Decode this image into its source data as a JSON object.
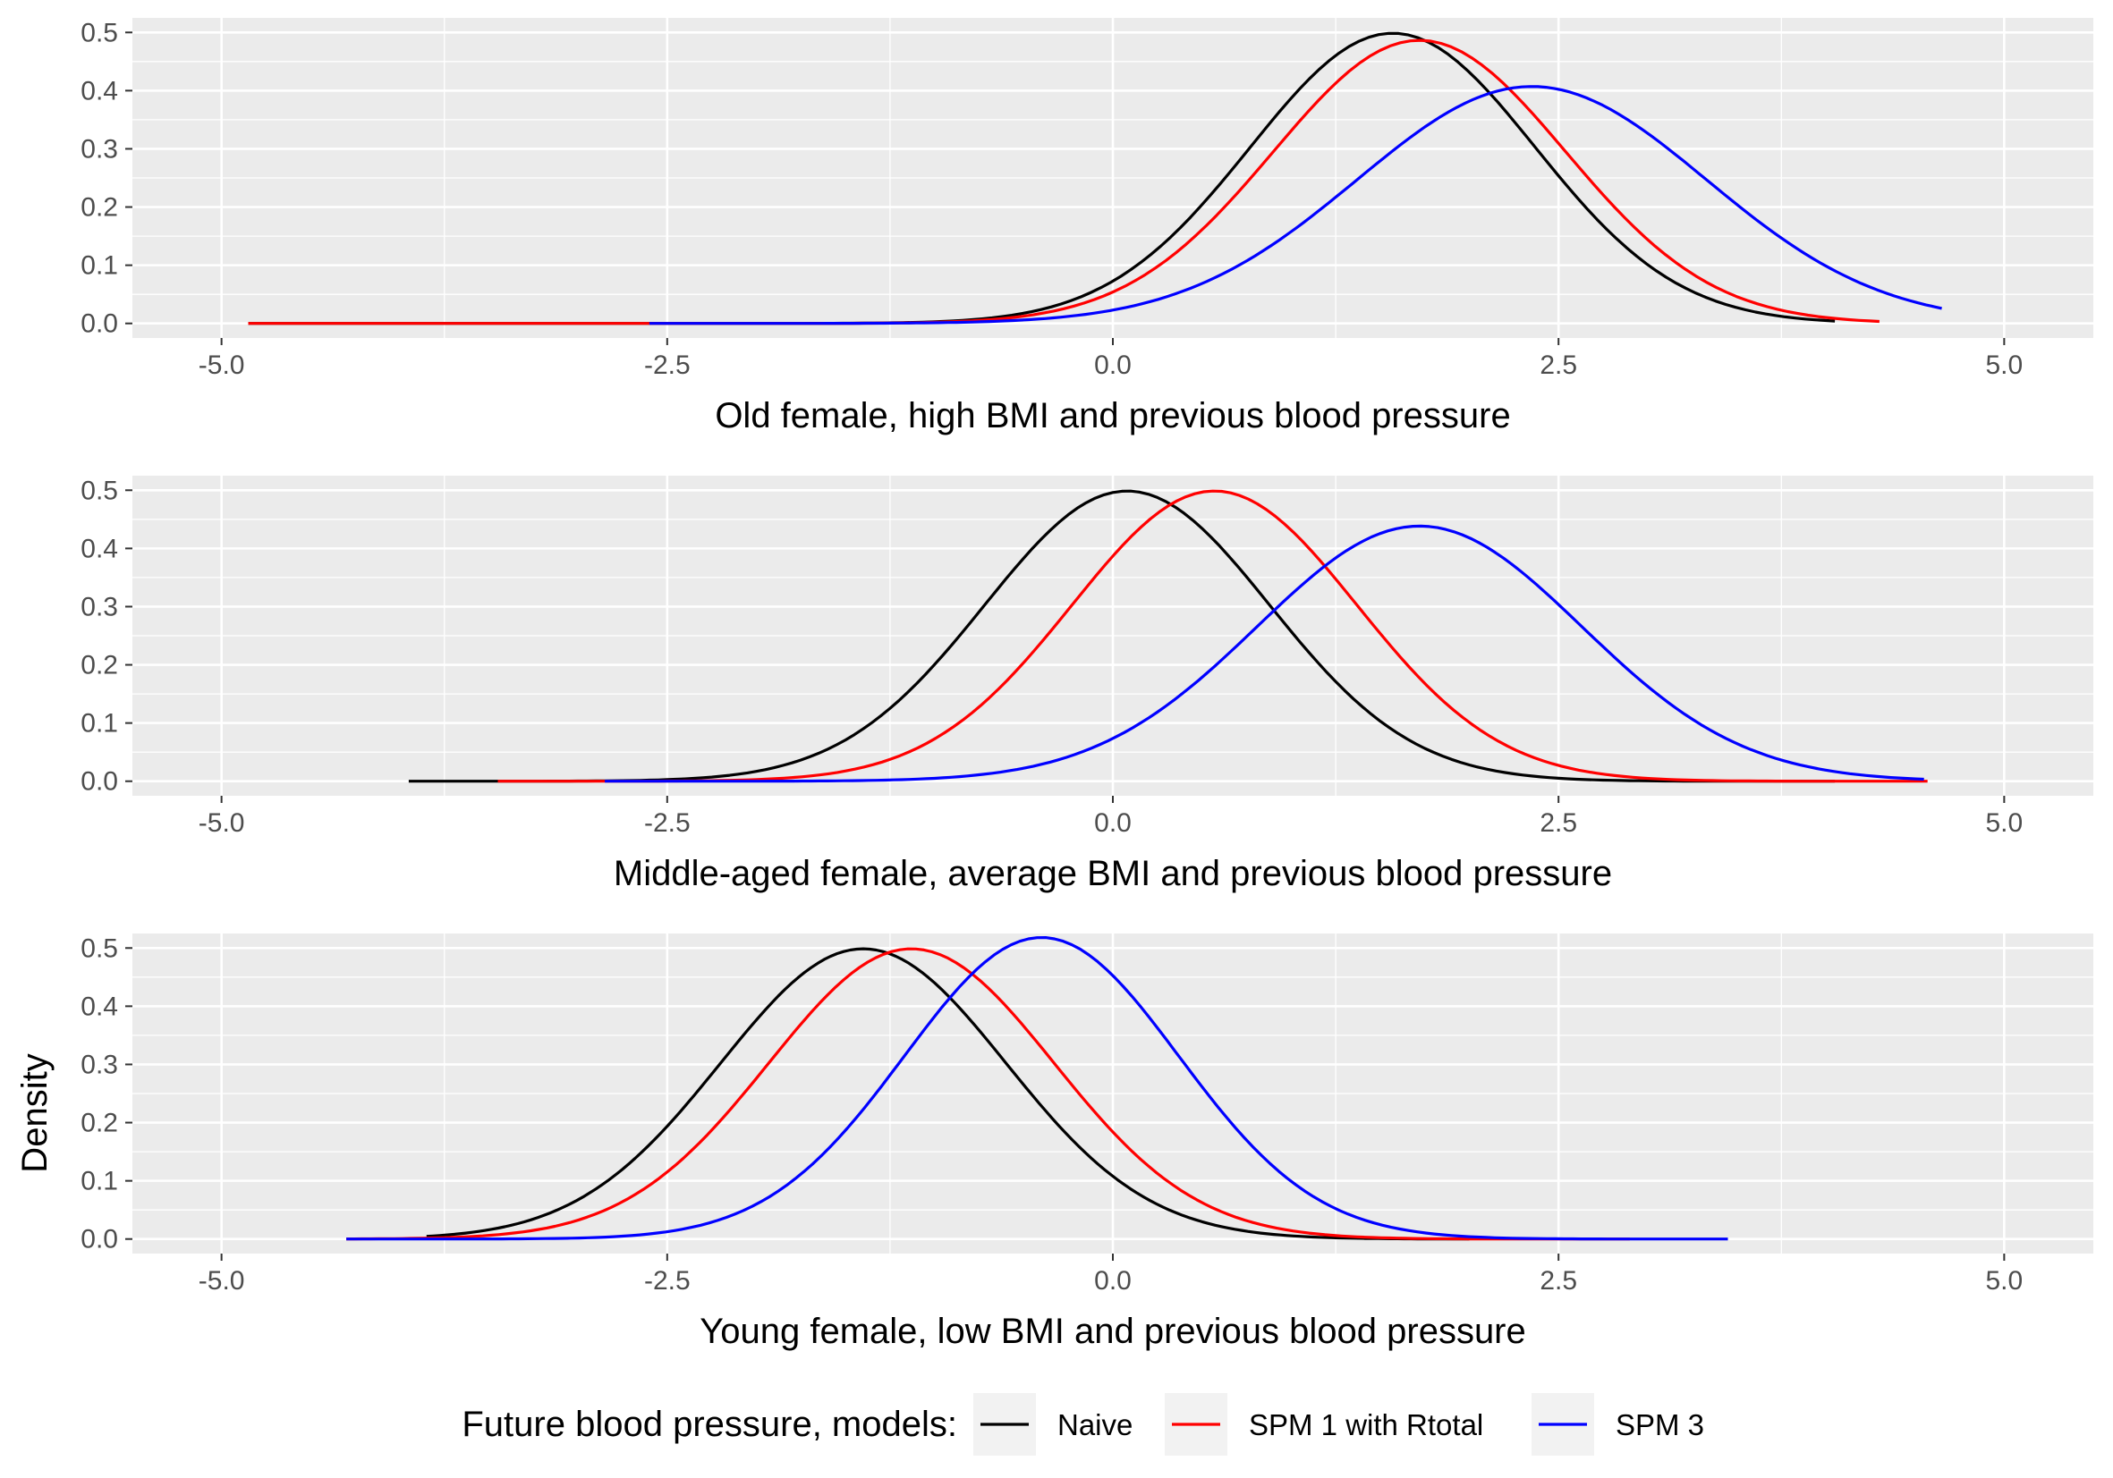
{
  "chart_data": {
    "type": "line",
    "ylabel": "Density",
    "xlim": [
      -5.0,
      5.0
    ],
    "ylim": [
      0.0,
      0.5
    ],
    "x_ticks": [
      "-5.0",
      "-2.5",
      "0.0",
      "2.5",
      "5.0"
    ],
    "y_ticks": [
      "0.0",
      "0.1",
      "0.2",
      "0.3",
      "0.4",
      "0.5"
    ],
    "grid": true,
    "legend": {
      "title": "Future blood pressure, models:",
      "position": "bottom",
      "entries": [
        {
          "name": "Naive",
          "color": "#000000"
        },
        {
          "name": "SPM 1 with Rtotal",
          "color": "#ff0000"
        },
        {
          "name": "SPM 3",
          "color": "#0000ff"
        }
      ]
    },
    "panels": [
      {
        "xlabel": "Old female, high BMI and previous blood pressure",
        "series": [
          {
            "name": "Naive",
            "mean": 1.57,
            "sd": 0.8,
            "xmin": -4.85,
            "xmax": 4.05
          },
          {
            "name": "SPM 1 with Rtotal",
            "mean": 1.72,
            "sd": 0.82,
            "xmin": -4.85,
            "xmax": 4.3
          },
          {
            "name": "SPM 3",
            "mean": 2.35,
            "sd": 0.98,
            "xmin": -2.6,
            "xmax": 4.65
          }
        ]
      },
      {
        "xlabel": "Middle-aged female, average BMI and previous blood pressure",
        "series": [
          {
            "name": "Naive",
            "mean": 0.08,
            "sd": 0.8,
            "xmin": -3.95,
            "xmax": 4.05
          },
          {
            "name": "SPM 1 with Rtotal",
            "mean": 0.57,
            "sd": 0.8,
            "xmin": -3.45,
            "xmax": 4.57
          },
          {
            "name": "SPM 3",
            "mean": 1.72,
            "sd": 0.91,
            "xmin": -2.85,
            "xmax": 4.55
          }
        ]
      },
      {
        "xlabel": "Young female, low BMI and previous blood pressure",
        "series": [
          {
            "name": "Naive",
            "mean": -1.4,
            "sd": 0.8,
            "xmin": -3.85,
            "xmax": 2.0
          },
          {
            "name": "SPM 1 with Rtotal",
            "mean": -1.13,
            "sd": 0.8,
            "xmin": -4.3,
            "xmax": 2.9
          },
          {
            "name": "SPM 3",
            "mean": -0.4,
            "sd": 0.77,
            "xmin": -4.3,
            "xmax": 3.45
          }
        ]
      }
    ]
  }
}
